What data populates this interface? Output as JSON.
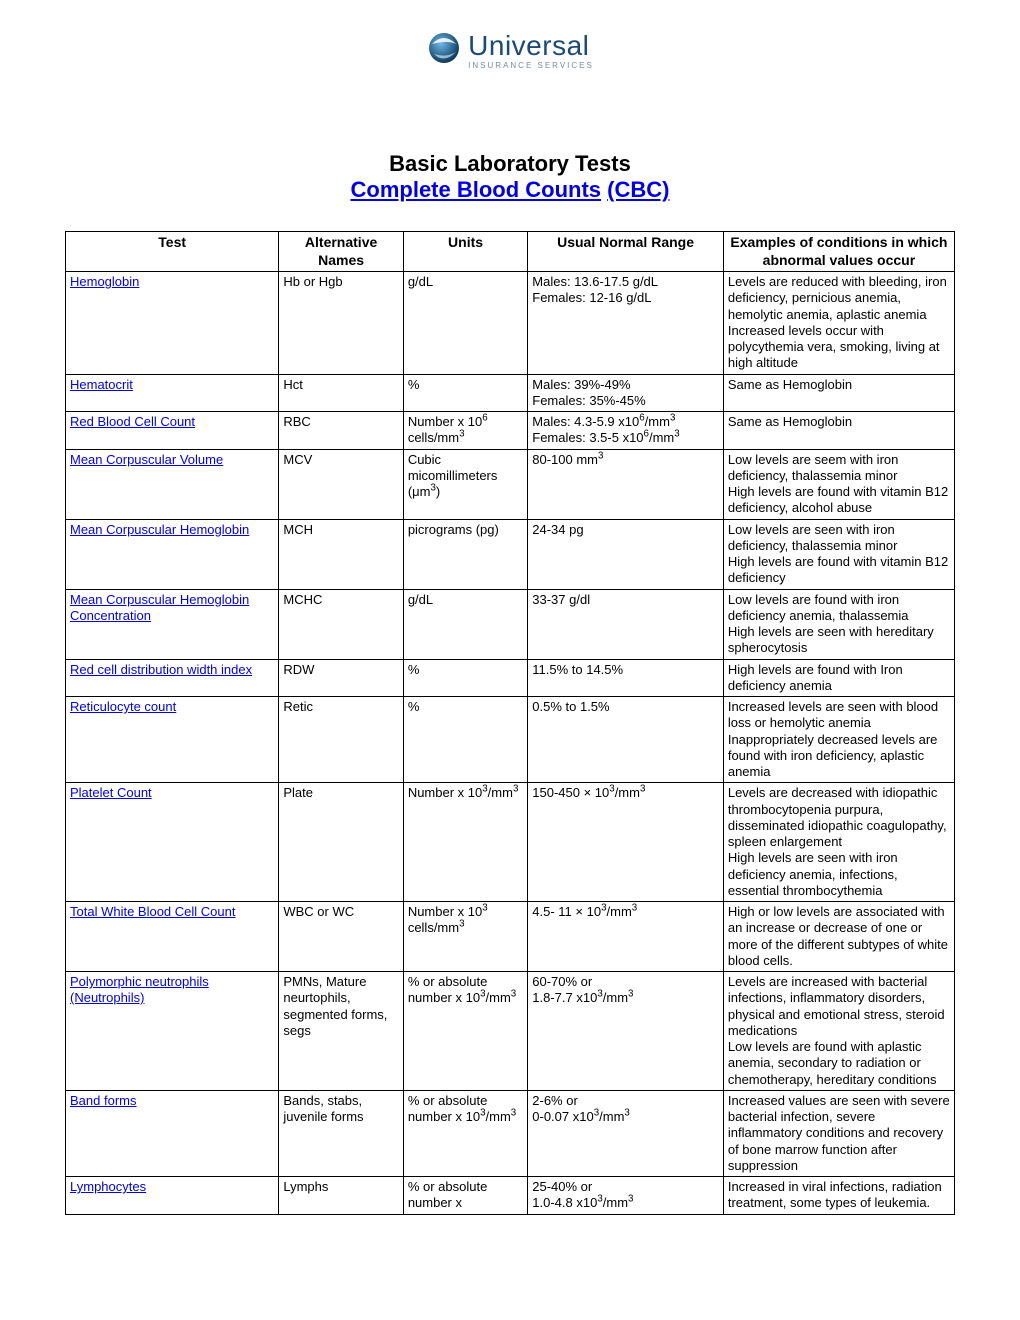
{
  "logo": {
    "main": "Universal",
    "sub": "INSURANCE SERVICES"
  },
  "title": {
    "line1": "Basic Laboratory Tests",
    "link_text": "Complete Blood Counts",
    "paren": "(CBC)"
  },
  "columns": [
    "Test",
    "Alternative Names",
    "Units",
    "Usual Normal Range",
    "Examples of conditions in which abnormal values occur"
  ],
  "rows": [
    {
      "test": "Hemoglobin",
      "alt": "Hb or Hgb",
      "units": "g/dL",
      "range": "Males: 13.6-17.5 g/dL<br>Females: 12-16 g/dL",
      "cond": "Levels are reduced with bleeding, iron deficiency, pernicious anemia, hemolytic anemia, aplastic anemia<br>Increased levels occur with polycythemia vera, smoking, living at high altitude"
    },
    {
      "test": "Hematocrit",
      "alt": "Hct",
      "units": "%",
      "range": "Males: 39%-49%<br>Females: 35%-45%",
      "cond": "Same as Hemoglobin"
    },
    {
      "test": "Red Blood Cell Count",
      "alt": "RBC",
      "units": "Number x 10<sup>6</sup> cells/mm<sup>3</sup>",
      "range": "Males: 4.3-5.9 x10<sup>6</sup>/mm<sup>3</sup><br>Females: 3.5-5 x10<sup>6</sup>/mm<sup>3</sup>",
      "cond": "Same as Hemoglobin"
    },
    {
      "test": "Mean Corpuscular Volume",
      "alt": "MCV",
      "units": "Cubic micomillimeters (&mu;m<sup>3</sup>)",
      "range": "80-100 mm<sup>3</sup>",
      "cond": "Low levels are seem with iron deficiency, thalassemia minor<br>High levels are found with vitamin B12 deficiency, alcohol abuse"
    },
    {
      "test": "Mean Corpuscular Hemoglobin",
      "alt": "MCH",
      "units": "picrograms (pg)",
      "range": "24-34 pg",
      "cond": "Low levels are seen  with iron deficiency, thalassemia minor<br>High levels are found  with vitamin B12 deficiency"
    },
    {
      "test": "Mean Corpuscular Hemoglobin Concentration",
      "alt": "MCHC",
      "units": "g/dL",
      "range": "33-37 g/dl",
      "cond": "Low levels are found with  iron deficiency anemia, thalassemia<br>High levels are seen with hereditary spherocytosis"
    },
    {
      "test": "Red cell distribution width index",
      "alt": "RDW",
      "units": "%",
      "range": "11.5% to 14.5%",
      "cond": "High levels are found with Iron deficiency anemia"
    },
    {
      "test": "Reticulocyte count",
      "alt": "Retic",
      "units": "%",
      "range": "0.5% to 1.5%",
      "cond": "Increased levels are seen with blood loss or hemolytic anemia<br>Inappropriately decreased levels are found with iron deficiency, aplastic anemia"
    },
    {
      "test": "Platelet Count",
      "alt": "Plate",
      "units": "Number x 10<sup>3</sup>/mm<sup>3</sup>",
      "range": "150-450 &times; 10<sup>3</sup>/mm<sup>3</sup>",
      "cond": "Levels are decreased with idiopathic thrombocytopenia purpura, disseminated idiopathic coagulopathy, spleen enlargement<br>High levels are seen with iron deficiency anemia, infections, essential thrombocythemia"
    },
    {
      "test": "Total White Blood Cell Count",
      "alt": "WBC or WC",
      "units": "Number x 10<sup>3</sup> cells/mm<sup>3</sup>",
      "range": "4.5- 11 &times; 10<sup>3</sup>/mm<sup>3</sup>",
      "cond": "High or low levels are associated with an increase or decrease of one or more of the different subtypes of white blood cells."
    },
    {
      "test": "Polymorphic neutrophils (Neutrophils)",
      "alt": "PMNs, Mature neurtophils, segmented forms, segs",
      "units": "%  or absolute number x 10<sup>3</sup>/mm<sup>3</sup>",
      "range": "60-70% or<br>1.8-7.7 x10<sup>3</sup>/mm<sup>3</sup>",
      "cond": "Levels are increased with bacterial infections, inflammatory disorders, physical and emotional stress, steroid medications<br>Low levels are found with aplastic anemia, secondary to radiation or chemotherapy, hereditary conditions"
    },
    {
      "test": "Band forms",
      "alt": "Bands, stabs, juvenile forms",
      "units": "%  or absolute number x 10<sup>3</sup>/mm<sup>3</sup>",
      "range": "2-6% or<br>0-0.07 x10<sup>3</sup>/mm<sup>3</sup>",
      "cond": "Increased values are seen with severe bacterial infection, severe inflammatory conditions and recovery of bone marrow function after suppression"
    },
    {
      "test": "Lymphocytes",
      "alt": "Lymphs",
      "units": "%  or absolute number x",
      "range": "25-40% or<br>1.0-4.8 x10<sup>3</sup>/mm<sup>3</sup>",
      "cond": "Increased in viral infections, radiation treatment, some types of leukemia."
    }
  ],
  "colors": {
    "link": "#0000ee",
    "border": "#000000",
    "logo_primary": "#1a4a7a",
    "logo_secondary": "#7a8a9a"
  }
}
